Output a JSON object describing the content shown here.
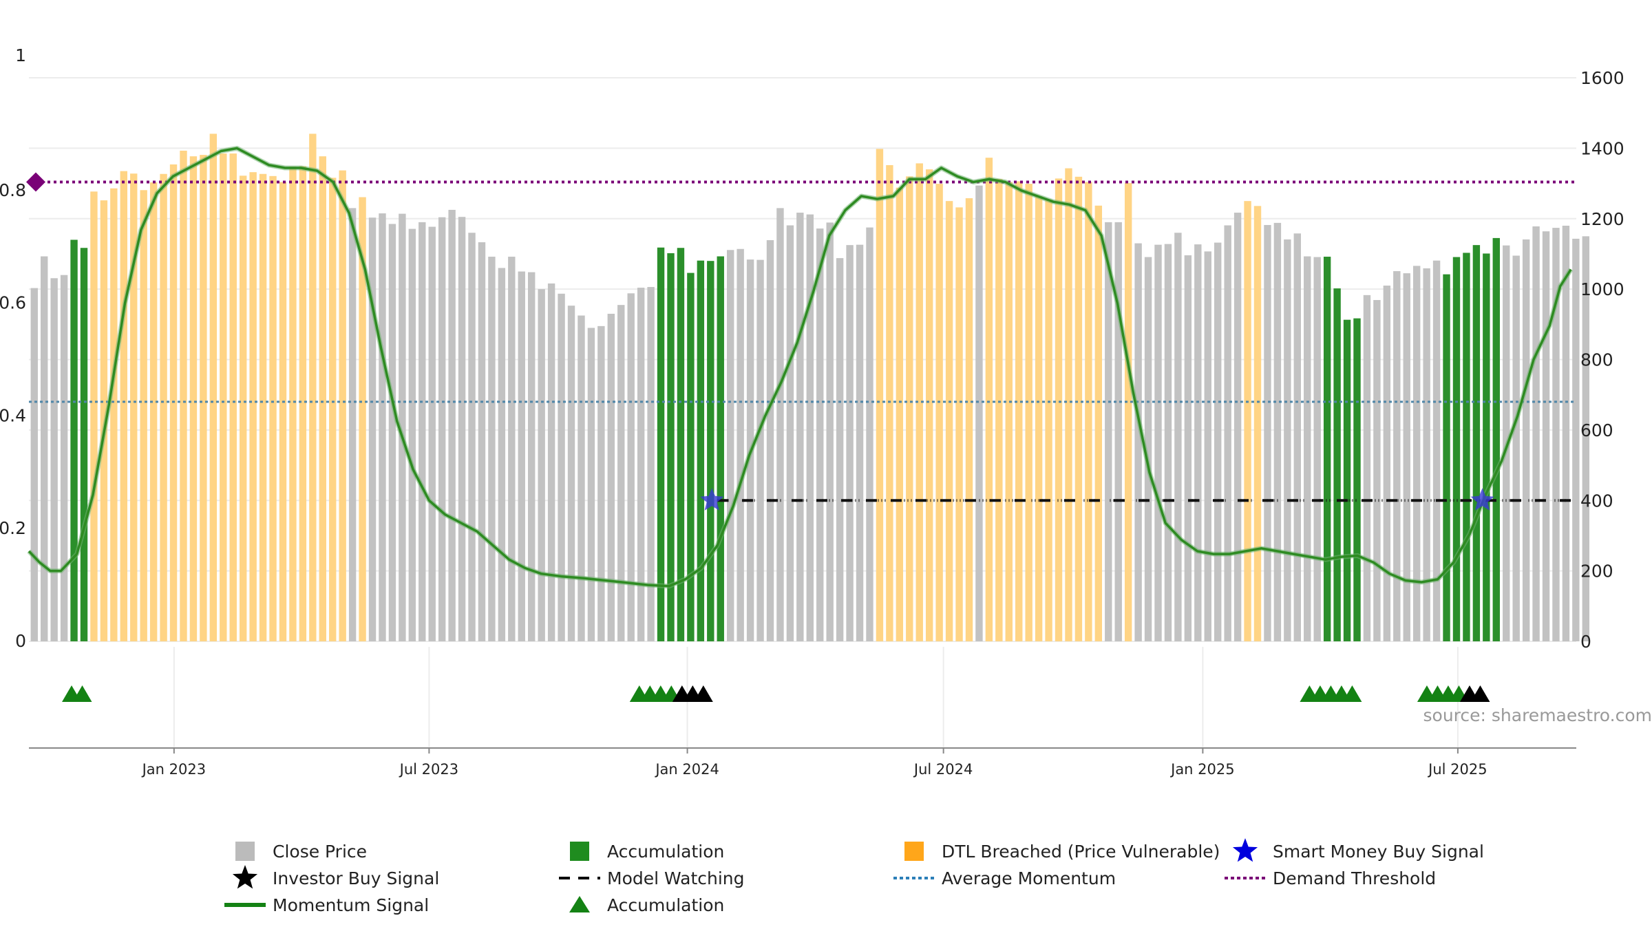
{
  "chart_data": {
    "type": "bar",
    "title": "",
    "source": "source: sharemaestro.com",
    "left_axis": {
      "ticks": [
        "0",
        "0.2",
        "0.4",
        "0.6",
        "0.8",
        "1"
      ],
      "range": [
        0,
        1
      ]
    },
    "right_axis": {
      "ticks": [
        "0",
        "200",
        "400",
        "600",
        "800",
        "1000",
        "1200",
        "1400",
        "1600"
      ],
      "range": [
        0,
        1600
      ]
    },
    "x_axis": {
      "range": [
        0,
        1450
      ],
      "ticks": [
        {
          "label": "Jan 2023",
          "day": 136
        },
        {
          "label": "Jul 2023",
          "day": 375
        },
        {
          "label": "Jan 2024",
          "day": 617
        },
        {
          "label": "Jul 2024",
          "day": 857
        },
        {
          "label": "Jan 2025",
          "day": 1100
        },
        {
          "label": "Jul 2025",
          "day": 1339
        }
      ]
    },
    "bar_step_days": 9.32,
    "bar_start_day": 5,
    "close_price": [
      1003,
      1093,
      1031,
      1040,
      1140,
      1117,
      1277,
      1252,
      1286,
      1335,
      1328,
      1281,
      1303,
      1327,
      1354,
      1393,
      1377,
      1381,
      1441,
      1385,
      1385,
      1322,
      1332,
      1327,
      1321,
      1304,
      1348,
      1349,
      1441,
      1377,
      1316,
      1337,
      1230,
      1261,
      1203,
      1215,
      1185,
      1214,
      1171,
      1190,
      1177,
      1204,
      1225,
      1205,
      1160,
      1133,
      1092,
      1060,
      1092,
      1050,
      1048,
      1000,
      1016,
      987,
      953,
      925,
      890,
      895,
      930,
      955,
      988,
      1004,
      1006,
      1118,
      1102,
      1117,
      1046,
      1081,
      1080,
      1093,
      1111,
      1114,
      1084,
      1083,
      1139,
      1230,
      1181,
      1217,
      1212,
      1172,
      1189,
      1088,
      1125,
      1126,
      1175,
      1398,
      1352,
      1288,
      1320,
      1357,
      1340,
      1299,
      1250,
      1232,
      1258,
      1294,
      1373,
      1313,
      1304,
      1306,
      1299,
      1264,
      1254,
      1314,
      1343,
      1319,
      1304,
      1237,
      1190,
      1190,
      1301,
      1130,
      1091,
      1126,
      1128,
      1160,
      1096,
      1127,
      1107,
      1132,
      1181,
      1217,
      1250,
      1236,
      1182,
      1188,
      1141,
      1158,
      1093,
      1091,
      1092,
      1002,
      913,
      917,
      983,
      969,
      1010,
      1051,
      1045,
      1066,
      1059,
      1081,
      1042,
      1091,
      1103,
      1125,
      1101,
      1145,
      1124,
      1095,
      1141,
      1178,
      1164,
      1174,
      1180,
      1143,
      1150
    ],
    "bar_category_by_index": [
      "close",
      "close",
      "close",
      "close",
      "accumulation",
      "accumulation",
      "dtl",
      "dtl",
      "dtl",
      "dtl",
      "dtl",
      "dtl",
      "dtl",
      "dtl",
      "dtl",
      "dtl",
      "dtl",
      "dtl",
      "dtl",
      "dtl",
      "dtl",
      "dtl",
      "dtl",
      "dtl",
      "dtl",
      "dtl",
      "dtl",
      "dtl",
      "dtl",
      "dtl",
      "dtl",
      "dtl",
      "close",
      "dtl",
      "close",
      "close",
      "close",
      "close",
      "close",
      "close",
      "close",
      "close",
      "close",
      "close",
      "close",
      "close",
      "close",
      "close",
      "close",
      "close",
      "close",
      "close",
      "close",
      "close",
      "close",
      "close",
      "close",
      "close",
      "close",
      "close",
      "close",
      "close",
      "close",
      "accumulation",
      "accumulation",
      "accumulation",
      "accumulation",
      "accumulation",
      "accumulation",
      "accumulation",
      "close",
      "close",
      "close",
      "close",
      "close",
      "close",
      "close",
      "close",
      "close",
      "close",
      "close",
      "close",
      "close",
      "close",
      "close",
      "dtl",
      "dtl",
      "dtl",
      "dtl",
      "dtl",
      "dtl",
      "dtl",
      "dtl",
      "dtl",
      "dtl",
      "close",
      "dtl",
      "dtl",
      "dtl",
      "dtl",
      "dtl",
      "dtl",
      "dtl",
      "dtl",
      "dtl",
      "dtl",
      "dtl",
      "dtl",
      "close",
      "close",
      "dtl",
      "close",
      "close",
      "close",
      "close",
      "close",
      "close",
      "close",
      "close",
      "close",
      "close",
      "close",
      "dtl",
      "dtl",
      "close",
      "close",
      "close",
      "close",
      "close",
      "close",
      "accumulation",
      "accumulation",
      "accumulation",
      "accumulation",
      "close",
      "close",
      "close",
      "close",
      "close",
      "close",
      "close",
      "close",
      "accumulation",
      "accumulation",
      "accumulation",
      "accumulation",
      "accumulation",
      "accumulation",
      "close",
      "close",
      "close",
      "close",
      "close",
      "close",
      "close",
      "close",
      "close"
    ],
    "momentum_signal": {
      "days": [
        0,
        10,
        20,
        30,
        45,
        60,
        75,
        90,
        105,
        120,
        135,
        150,
        165,
        180,
        195,
        210,
        225,
        240,
        255,
        270,
        285,
        300,
        315,
        330,
        345,
        360,
        375,
        390,
        405,
        420,
        435,
        450,
        465,
        480,
        500,
        520,
        540,
        560,
        580,
        600,
        615,
        630,
        645,
        660,
        675,
        690,
        705,
        720,
        735,
        750,
        765,
        780,
        795,
        810,
        825,
        840,
        855,
        870,
        885,
        900,
        915,
        930,
        945,
        960,
        975,
        990,
        1005,
        1020,
        1035,
        1050,
        1065,
        1080,
        1095,
        1110,
        1125,
        1140,
        1155,
        1170,
        1185,
        1200,
        1215,
        1230,
        1245,
        1260,
        1275,
        1290,
        1305,
        1320,
        1335,
        1350,
        1365,
        1380,
        1395,
        1410,
        1425,
        1435,
        1445
      ],
      "values": [
        0.16,
        0.14,
        0.125,
        0.125,
        0.155,
        0.26,
        0.42,
        0.6,
        0.73,
        0.795,
        0.825,
        0.84,
        0.855,
        0.87,
        0.875,
        0.86,
        0.845,
        0.84,
        0.84,
        0.835,
        0.815,
        0.76,
        0.66,
        0.52,
        0.39,
        0.305,
        0.25,
        0.225,
        0.21,
        0.195,
        0.17,
        0.145,
        0.13,
        0.12,
        0.115,
        0.112,
        0.108,
        0.104,
        0.1,
        0.098,
        0.11,
        0.13,
        0.17,
        0.24,
        0.33,
        0.4,
        0.46,
        0.53,
        0.62,
        0.72,
        0.765,
        0.79,
        0.785,
        0.79,
        0.82,
        0.82,
        0.84,
        0.825,
        0.815,
        0.82,
        0.815,
        0.8,
        0.79,
        0.78,
        0.775,
        0.765,
        0.72,
        0.6,
        0.44,
        0.3,
        0.21,
        0.18,
        0.16,
        0.155,
        0.155,
        0.16,
        0.165,
        0.16,
        0.155,
        0.15,
        0.145,
        0.15,
        0.152,
        0.14,
        0.12,
        0.108,
        0.105,
        0.11,
        0.14,
        0.19,
        0.26,
        0.32,
        0.4,
        0.5,
        0.56,
        0.63,
        0.66
      ]
    },
    "average_momentum": 0.425,
    "demand_threshold": 0.815,
    "model_watching": {
      "value": 0.25,
      "start_day": 645,
      "end_day": 1445
    },
    "smart_money_buy_signals": [
      {
        "day": 640,
        "value": 0.25
      },
      {
        "day": 1362,
        "value": 0.25
      }
    ],
    "accumulation_triangles": [
      {
        "day": 40,
        "color": "green"
      },
      {
        "day": 50,
        "color": "green"
      },
      {
        "day": 572,
        "color": "green"
      },
      {
        "day": 582,
        "color": "green"
      },
      {
        "day": 592,
        "color": "green"
      },
      {
        "day": 602,
        "color": "green"
      },
      {
        "day": 612,
        "color": "black"
      },
      {
        "day": 622,
        "color": "black"
      },
      {
        "day": 632,
        "color": "black"
      },
      {
        "day": 1200,
        "color": "green"
      },
      {
        "day": 1210,
        "color": "green"
      },
      {
        "day": 1220,
        "color": "green"
      },
      {
        "day": 1230,
        "color": "green"
      },
      {
        "day": 1240,
        "color": "green"
      },
      {
        "day": 1310,
        "color": "green"
      },
      {
        "day": 1320,
        "color": "green"
      },
      {
        "day": 1330,
        "color": "green"
      },
      {
        "day": 1340,
        "color": "green"
      },
      {
        "day": 1350,
        "color": "black"
      },
      {
        "day": 1360,
        "color": "black"
      }
    ],
    "legend": [
      {
        "label": "Close Price",
        "symbol": "square",
        "color": "#bbbbbb"
      },
      {
        "label": "Accumulation",
        "symbol": "square",
        "color": "#1f8c1f"
      },
      {
        "label": "DTL Breached (Price Vulnerable)",
        "symbol": "square",
        "color": "#ffa61a"
      },
      {
        "label": "Smart Money Buy Signal",
        "symbol": "star",
        "color": "#0000dd"
      },
      {
        "label": "Investor Buy Signal",
        "symbol": "star",
        "color": "#000000"
      },
      {
        "label": "Model Watching",
        "symbol": "dash",
        "color": "#000000"
      },
      {
        "label": "Average Momentum",
        "symbol": "dot",
        "color": "#2c7fb8"
      },
      {
        "label": "Demand Threshold",
        "symbol": "dot",
        "color": "#7a0177"
      },
      {
        "label": "Momentum Signal",
        "symbol": "line",
        "color": "#148214"
      },
      {
        "label": "Accumulation",
        "symbol": "triangle",
        "color": "#148214"
      }
    ]
  },
  "colors": {
    "close": "#c2c2c2",
    "accumulation": "#2b8f2b",
    "dtl": "#ffd485",
    "momentum": "#2e8b22",
    "avg": "#4f86a8",
    "threshold": "#7a0177",
    "triangle_green": "#148214",
    "triangle_black": "#000000",
    "star_blue": "#3a3ad6",
    "grid": "#ececec"
  }
}
